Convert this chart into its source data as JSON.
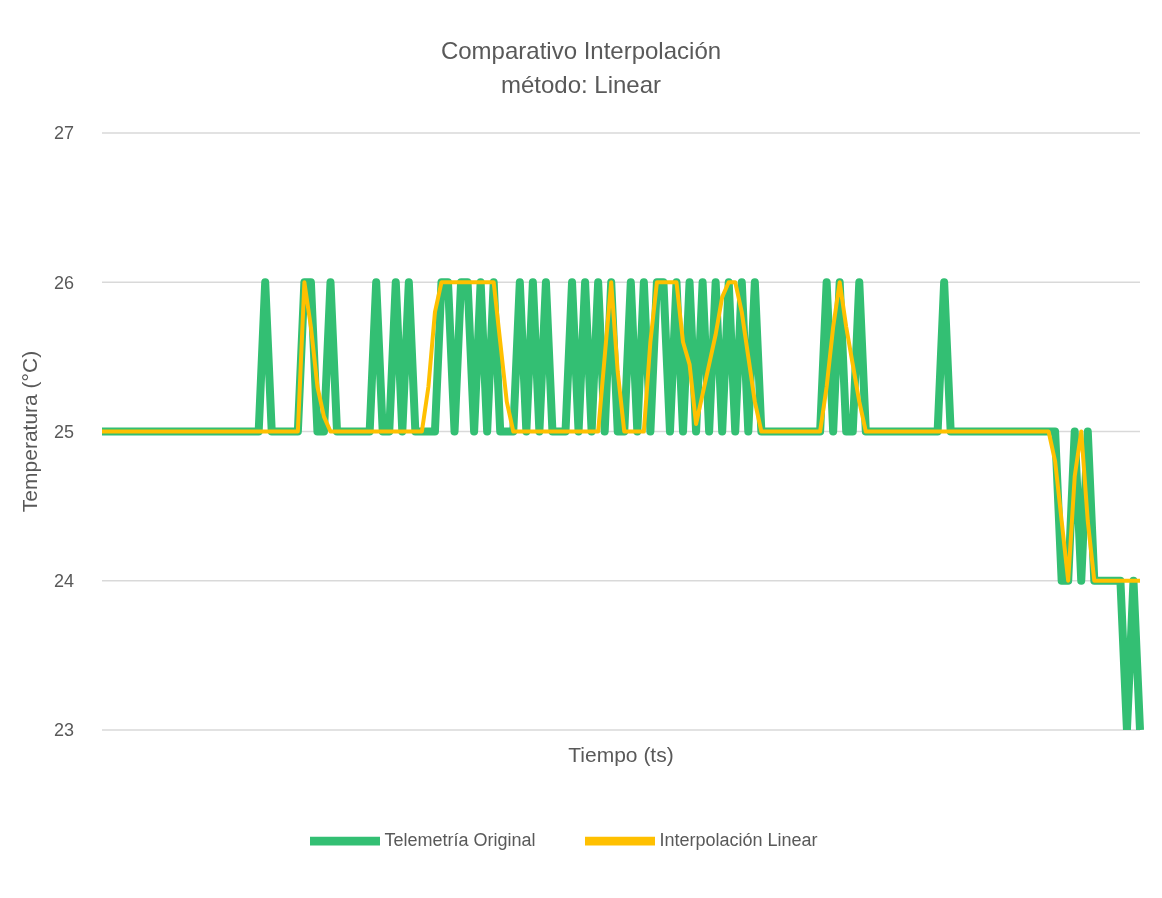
{
  "chart_data": {
    "type": "line",
    "title": "Comparativo Interpolación\nmétodo: Linear",
    "xlabel": "Tiempo (ts)",
    "ylabel": "Temperatura (°C)",
    "categories": [
      null,
      null,
      null,
      null,
      null,
      null,
      null,
      null,
      null,
      null,
      null,
      null,
      null,
      null,
      null,
      null,
      null,
      null,
      null,
      null,
      null,
      null,
      null,
      null,
      null,
      null,
      null,
      null,
      null,
      null,
      null,
      null,
      null,
      null,
      null,
      null,
      null,
      null,
      null,
      null,
      null,
      null,
      null,
      null,
      null,
      null,
      null,
      null,
      null,
      null,
      null,
      null,
      null,
      null,
      null,
      null,
      null,
      null,
      null,
      null,
      null,
      null,
      null,
      null,
      null,
      null,
      null,
      null,
      null,
      null,
      null,
      null,
      null,
      null,
      null,
      null,
      null,
      null,
      null,
      null,
      null,
      null,
      null,
      null,
      null,
      null,
      null,
      null,
      null,
      null,
      null,
      null,
      null,
      null,
      null,
      null,
      null,
      null,
      null,
      null,
      null,
      null,
      null,
      null,
      null,
      null,
      null,
      null,
      null,
      null,
      null,
      null,
      null,
      null,
      null,
      null,
      null,
      null,
      null,
      null,
      null,
      null,
      null,
      null,
      null,
      null,
      null,
      null,
      null,
      null,
      null,
      null,
      null,
      null,
      null,
      null,
      null,
      null,
      null,
      null,
      null,
      null,
      null,
      null,
      null,
      null,
      null,
      null,
      null,
      null,
      null,
      null,
      null,
      null,
      null,
      null,
      null,
      null,
      null,
      null
    ],
    "series": [
      {
        "name": "Telemetría Original",
        "color": "#33bf73",
        "values": [
          25,
          25,
          25,
          25,
          25,
          25,
          25,
          25,
          25,
          25,
          25,
          25,
          25,
          25,
          25,
          25,
          25,
          25,
          25,
          25,
          25,
          25,
          25,
          25,
          25,
          26,
          25,
          25,
          25,
          25,
          25,
          26,
          26,
          25,
          25,
          26,
          25,
          25,
          25,
          25,
          25,
          25,
          26,
          25,
          25,
          26,
          25,
          26,
          25,
          25,
          25,
          25,
          26,
          26,
          25,
          26,
          26,
          25,
          26,
          25,
          26,
          25,
          25,
          25,
          26,
          25,
          26,
          25,
          26,
          25,
          25,
          25,
          26,
          25,
          26,
          25,
          26,
          25,
          26,
          25,
          25,
          26,
          25,
          26,
          25,
          26,
          26,
          25,
          26,
          25,
          26,
          25,
          26,
          25,
          26,
          25,
          26,
          25,
          26,
          25,
          26,
          25,
          25,
          25,
          25,
          25,
          25,
          25,
          25,
          25,
          25,
          26,
          25,
          26,
          25,
          25,
          26,
          25,
          25,
          25,
          25,
          25,
          25,
          25,
          25,
          25,
          25,
          25,
          25,
          26,
          25,
          25,
          25,
          25,
          25,
          25,
          25,
          25,
          25,
          25,
          25,
          25,
          25,
          25,
          25,
          25,
          25,
          24,
          24,
          25,
          24,
          25,
          24,
          24,
          24,
          24,
          24,
          23,
          24,
          23
        ]
      },
      {
        "name": "Interpolación Linear",
        "color": "#ffc000",
        "values": [
          25,
          25,
          25,
          25,
          25,
          25,
          25,
          25,
          25,
          25,
          25,
          25,
          25,
          25,
          25,
          25,
          25,
          25,
          25,
          25,
          25,
          25,
          25,
          25,
          25,
          25,
          25,
          25,
          25,
          25,
          25,
          26,
          25.7,
          25.3,
          25.1,
          25,
          25,
          25,
          25,
          25,
          25,
          25,
          25,
          25,
          25,
          25,
          25,
          25,
          25,
          25,
          25.3,
          25.8,
          26,
          26,
          26,
          26,
          26,
          26,
          26,
          26,
          26,
          25.6,
          25.2,
          25,
          25,
          25,
          25,
          25,
          25,
          25,
          25,
          25,
          25,
          25,
          25,
          25,
          25,
          25.5,
          26,
          25.4,
          25,
          25,
          25,
          25,
          25.6,
          26,
          26,
          26,
          26,
          25.6,
          25.45,
          25.05,
          25.25,
          25.45,
          25.65,
          25.9,
          26,
          26,
          25.8,
          25.5,
          25.2,
          25,
          25,
          25,
          25,
          25,
          25,
          25,
          25,
          25,
          25,
          25.3,
          25.7,
          26,
          25.7,
          25.45,
          25.2,
          25,
          25,
          25,
          25,
          25,
          25,
          25,
          25,
          25,
          25,
          25,
          25,
          25,
          25,
          25,
          25,
          25,
          25,
          25,
          25,
          25,
          25,
          25,
          25,
          25,
          25,
          25,
          25,
          25,
          24.8,
          24.4,
          24,
          24.7,
          25,
          24.4,
          24,
          24,
          24,
          24,
          24,
          24,
          24,
          24
        ]
      }
    ],
    "ylim": [
      23,
      27
    ],
    "yticks": [
      23,
      24,
      25,
      26,
      27
    ],
    "grid": "y",
    "legend": "bottom",
    "marker": "none",
    "line_style": "solid"
  }
}
